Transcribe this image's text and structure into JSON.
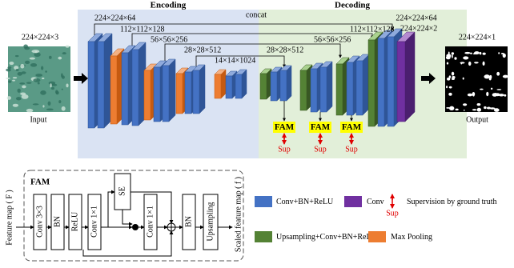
{
  "sections": {
    "encoding": "Encoding",
    "decoding": "Decoding"
  },
  "input": {
    "size": "224×224×3",
    "label": "Input"
  },
  "output": {
    "size": "224×224×1",
    "label": "Output"
  },
  "encoder_sizes": [
    "224×224×64",
    "112×112×128",
    "56×56×256",
    "28×28×512",
    "14×14×1024"
  ],
  "concat": "concat",
  "decoder_sizes": [
    "28×28×512",
    "56×56×256",
    "112×112×128",
    "224×224×64",
    "224×224×2"
  ],
  "fam_outputs": [
    {
      "module": "FAM",
      "sup": "Sup"
    },
    {
      "module": "FAM",
      "sup": "Sup"
    },
    {
      "module": "FAM",
      "sup": "Sup"
    }
  ],
  "fam_detail": {
    "title": "FAM",
    "input": "Feature map ( F )",
    "layers": [
      "Conv 3×3",
      "BN",
      "ReLU",
      "Conv 1×1",
      "SE",
      "Conv 1×1",
      "BN",
      "Upsampling"
    ],
    "output": "Scaled feature map ( f )"
  },
  "legend": [
    {
      "label": "Conv+BN+ReLU"
    },
    {
      "label": "Conv"
    },
    {
      "label": "Supervision by ground truth",
      "icon_text": "Sup"
    },
    {
      "label": "Upsampling+Conv+BN+ReLU"
    },
    {
      "label": "Max Pooling"
    }
  ]
}
